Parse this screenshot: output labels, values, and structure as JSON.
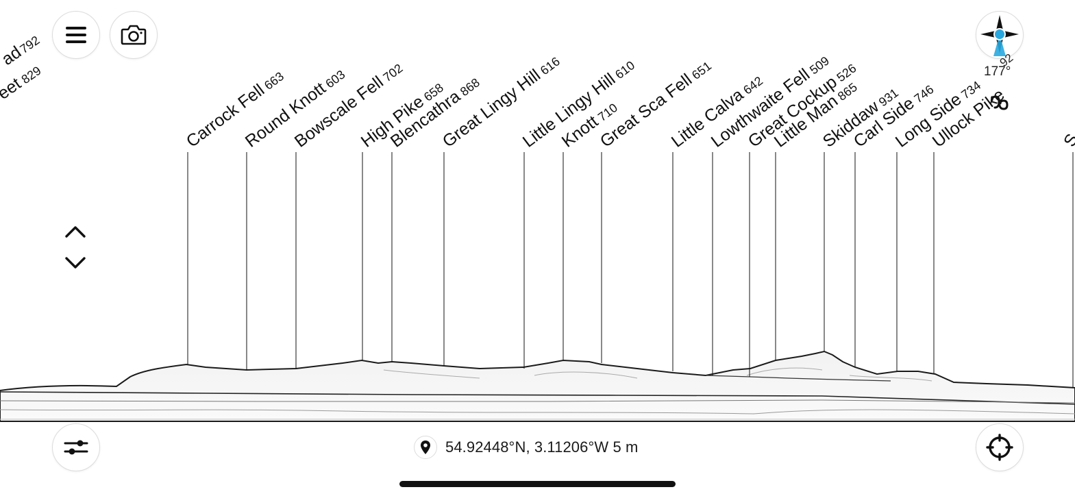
{
  "toolbar": {
    "menu_icon": "menu-icon",
    "camera_icon": "camera-icon",
    "filters_icon": "filters-icon",
    "locate_icon": "locate-icon"
  },
  "compass": {
    "icon": "compass-icon",
    "heading": "177°",
    "heading_overlap": "92",
    "accent_color": "#29a8e0"
  },
  "location": {
    "coordinates": "54.92448°N, 3.11206°W",
    "altitude": "5 m"
  },
  "peaks": [
    {
      "name": "Carrock Fell",
      "elevation": "663"
    },
    {
      "name": "Round Knott",
      "elevation": "603"
    },
    {
      "name": "Bowscale Fell",
      "elevation": "702"
    },
    {
      "name": "High Pike",
      "elevation": "658"
    },
    {
      "name": "Blencathra",
      "elevation": "868"
    },
    {
      "name": "Great Lingy Hill",
      "elevation": "616"
    },
    {
      "name": "Little Lingy Hill",
      "elevation": "610"
    },
    {
      "name": "Knott",
      "elevation": "710"
    },
    {
      "name": "Great Sca Fell",
      "elevation": "651"
    },
    {
      "name": "Little Calva",
      "elevation": "642"
    },
    {
      "name": "Lowthwaite Fell",
      "elevation": "509"
    },
    {
      "name": "Great Cockup",
      "elevation": "526"
    },
    {
      "name": "Little Man",
      "elevation": "865"
    },
    {
      "name": "Skiddaw",
      "elevation": "931"
    },
    {
      "name": "Carl Side",
      "elevation": "746"
    },
    {
      "name": "Long Side",
      "elevation": "734"
    },
    {
      "name": "Ullock Pike",
      "elevation": ""
    }
  ],
  "edge_peaks": {
    "left_a": {
      "name": "ad",
      "elevation": "792"
    },
    "left_b": {
      "name": "eet",
      "elevation": "829"
    },
    "right": {
      "name": "S",
      "elevation": ""
    }
  }
}
